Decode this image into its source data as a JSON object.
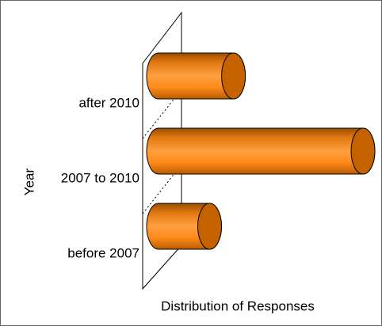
{
  "chart_data": {
    "type": "bar3d",
    "orientation": "horizontal",
    "xlabel": "Distribution of Responses",
    "ylabel": "Year",
    "categories": [
      "after 2010",
      "2007 to 2010",
      "before 2007"
    ],
    "values": [
      22,
      60,
      15
    ],
    "color": "#ff8c1a",
    "xlim": [
      0,
      60
    ]
  }
}
